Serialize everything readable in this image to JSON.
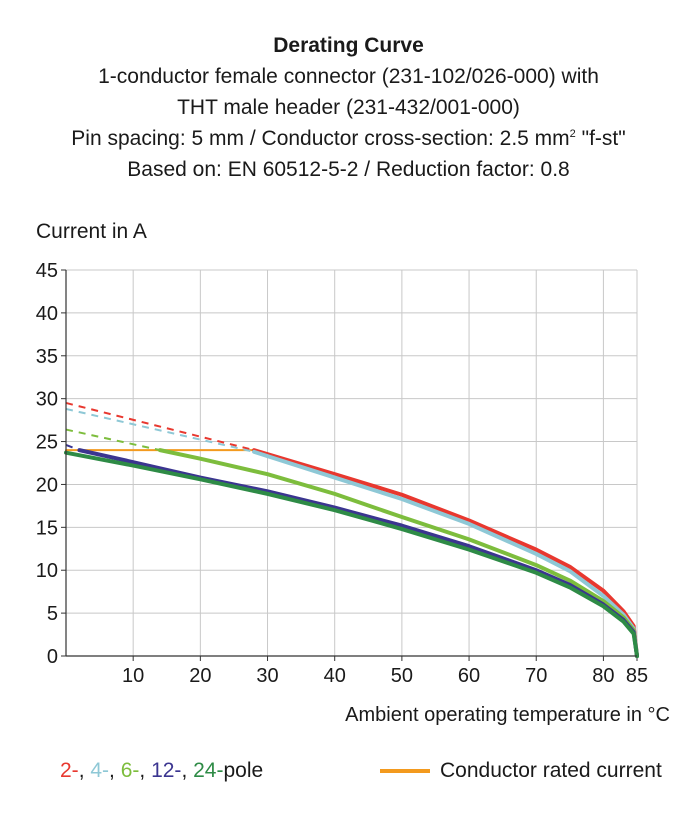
{
  "titles": {
    "main": "Derating Curve",
    "line1": "1-conductor female connector (231-102/026-000) with",
    "line2": "THT male header (231-432/001-000)",
    "line3_pre": "Pin spacing: 5 mm / Conductor cross-section: 2.5 mm",
    "line3_sup": "2",
    "line3_post": " \"f-st\"",
    "line4": "Based on: EN 60512-5-2 / Reduction factor: 0.8"
  },
  "legend": {
    "items": [
      {
        "text": "2-",
        "color": "#e8382f"
      },
      {
        "text": ", ",
        "color": "#1a1a1a"
      },
      {
        "text": "4-",
        "color": "#8ec8d6"
      },
      {
        "text": ", ",
        "color": "#1a1a1a"
      },
      {
        "text": "6-",
        "color": "#7dbd3d"
      },
      {
        "text": ", ",
        "color": "#1a1a1a"
      },
      {
        "text": "12-",
        "color": "#3b3590"
      },
      {
        "text": ", ",
        "color": "#1a1a1a"
      },
      {
        "text": "24-",
        "color": "#2e8b46"
      },
      {
        "text": "pole",
        "color": "#1a1a1a"
      }
    ],
    "rated_label": "Conductor rated current",
    "rated_color": "#f39a1e"
  },
  "chart_data": {
    "type": "line",
    "ylabel": "Current in A",
    "xlabel": "Ambient operating temperature in °C",
    "xlim": [
      0,
      85
    ],
    "ylim": [
      0,
      45
    ],
    "x_ticks": [
      10,
      20,
      30,
      40,
      50,
      60,
      70,
      80,
      85
    ],
    "y_ticks": [
      0,
      5,
      10,
      15,
      20,
      25,
      30,
      35,
      40,
      45
    ],
    "grid": true,
    "series": [
      {
        "name": "2-pole",
        "color": "#e8382f",
        "dashed": [
          [
            0,
            29.5
          ],
          [
            28,
            24
          ]
        ],
        "solid": [
          [
            28,
            24
          ],
          [
            40,
            21.2
          ],
          [
            50,
            18.8
          ],
          [
            60,
            15.8
          ],
          [
            70,
            12.4
          ],
          [
            75,
            10.4
          ],
          [
            80,
            7.6
          ],
          [
            83,
            5.2
          ],
          [
            84.5,
            3.5
          ],
          [
            85,
            0
          ]
        ]
      },
      {
        "name": "4-pole",
        "color": "#8ec8d6",
        "dashed": [
          [
            0,
            28.8
          ],
          [
            28,
            23.8
          ]
        ],
        "solid": [
          [
            28,
            23.8
          ],
          [
            40,
            20.8
          ],
          [
            50,
            18.3
          ],
          [
            60,
            15.4
          ],
          [
            70,
            11.9
          ],
          [
            75,
            9.9
          ],
          [
            80,
            7.0
          ],
          [
            83,
            4.8
          ],
          [
            84.5,
            3.2
          ],
          [
            85,
            0
          ]
        ]
      },
      {
        "name": "6-pole",
        "color": "#7dbd3d",
        "dashed": [
          [
            0,
            26.4
          ],
          [
            14,
            24
          ]
        ],
        "solid": [
          [
            14,
            24
          ],
          [
            20,
            23.0
          ],
          [
            30,
            21.2
          ],
          [
            40,
            18.9
          ],
          [
            50,
            16.2
          ],
          [
            60,
            13.6
          ],
          [
            70,
            10.6
          ],
          [
            75,
            8.8
          ],
          [
            80,
            6.4
          ],
          [
            83,
            4.5
          ],
          [
            84.5,
            3.0
          ],
          [
            85,
            0
          ]
        ]
      },
      {
        "name": "12-pole",
        "color": "#3b3590",
        "dashed": [
          [
            0,
            24.6
          ],
          [
            2,
            24
          ]
        ],
        "solid": [
          [
            2,
            24
          ],
          [
            10,
            22.6
          ],
          [
            20,
            20.8
          ],
          [
            30,
            19.2
          ],
          [
            40,
            17.3
          ],
          [
            50,
            15.2
          ],
          [
            60,
            12.8
          ],
          [
            70,
            10.0
          ],
          [
            75,
            8.3
          ],
          [
            80,
            6.0
          ],
          [
            83,
            4.2
          ],
          [
            84.5,
            2.8
          ],
          [
            85,
            0
          ]
        ]
      },
      {
        "name": "24-pole",
        "color": "#2e8b46",
        "dashed": [],
        "solid": [
          [
            0,
            23.7
          ],
          [
            10,
            22.2
          ],
          [
            20,
            20.6
          ],
          [
            30,
            18.9
          ],
          [
            40,
            17.0
          ],
          [
            50,
            14.8
          ],
          [
            60,
            12.4
          ],
          [
            70,
            9.7
          ],
          [
            75,
            8.0
          ],
          [
            80,
            5.8
          ],
          [
            83,
            4.0
          ],
          [
            84.5,
            2.6
          ],
          [
            85,
            0
          ]
        ]
      },
      {
        "name": "Conductor rated current",
        "color": "#f39a1e",
        "dashed": [],
        "solid": [
          [
            0,
            24
          ],
          [
            28,
            24
          ]
        ]
      }
    ]
  }
}
